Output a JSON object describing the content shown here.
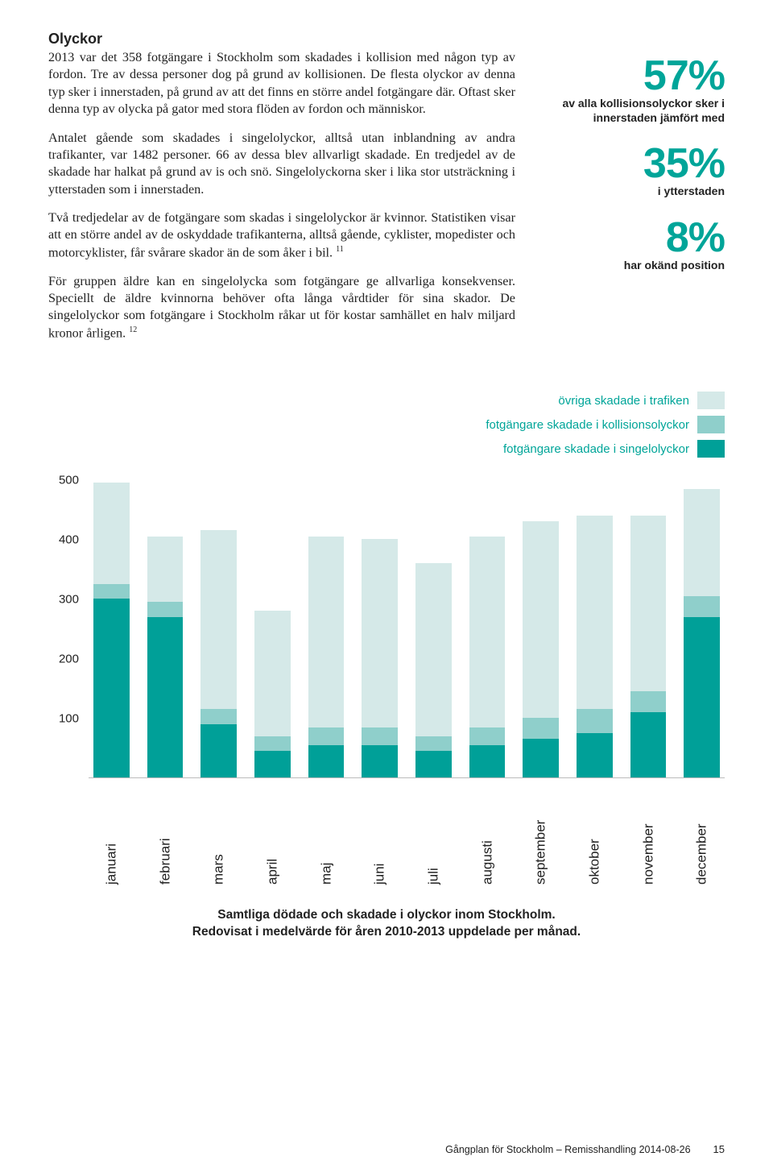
{
  "colors": {
    "teal": "#00a098",
    "teal_text": "#00a599",
    "mid": "#8fcfcb",
    "light": "#d5e9e8",
    "body_text": "#222222"
  },
  "heading": "Olyckor",
  "paragraphs": {
    "p1": "2013 var det 358 fotgängare i Stockholm som skadades i kollision med någon typ av fordon. Tre av dessa personer dog på grund av kollisionen. De flesta olyckor av denna typ sker i innerstaden, på grund av att det finns en större andel fotgängare där. Oftast sker denna typ av olycka på gator med stora flöden av fordon och människor.",
    "p2": "Antalet gående som skadades i singelolyckor, alltså utan inblandning av andra trafikanter, var 1482 personer. 66 av dessa blev allvarligt skadade. En tredjedel av de skadade har halkat på grund av is och snö. Singelolyckorna sker i lika stor utsträckning i ytterstaden som i innerstaden.",
    "p3": "Två tredjedelar av de fotgängare som skadas i singelolyckor är kvinnor. Statistiken visar att en större andel av de oskyddade trafikanterna, alltså gående, cyklister, mopedister och motorcyklister, får svårare skador än de som åker i bil.",
    "p3_sup": "11",
    "p4": "För gruppen äldre kan en singelolycka som fotgängare ge allvarliga konsekvenser. Speciellt de äldre kvinnorna behöver ofta långa vårdtider för sina skador. De singelolyckor som fotgängare i Stockholm råkar ut för kostar samhället en halv miljard kronor årligen.",
    "p4_sup": "12"
  },
  "stats": [
    {
      "value": "57%",
      "label": "av alla kollisionsolyckor sker i innerstaden jämfört med"
    },
    {
      "value": "35%",
      "label": "i ytterstaden"
    },
    {
      "value": "8%",
      "label": "har okänd position"
    }
  ],
  "legend": [
    {
      "label": "övriga skadade i trafiken",
      "color": "#d5e9e8",
      "text_color": "#00a599"
    },
    {
      "label": "fotgängare skadade i kollisionsolyckor",
      "color": "#8fcfcb",
      "text_color": "#00a599"
    },
    {
      "label": "fotgängare skadade i singelolyckor",
      "color": "#00a098",
      "text_color": "#00a599"
    }
  ],
  "chart": {
    "y_max": 500,
    "y_ticks": [
      "500",
      "400",
      "300",
      "200",
      "100"
    ],
    "months": [
      "januari",
      "februari",
      "mars",
      "april",
      "maj",
      "juni",
      "juli",
      "augusti",
      "september",
      "oktober",
      "november",
      "december"
    ],
    "series": {
      "single": [
        300,
        270,
        90,
        45,
        55,
        55,
        45,
        55,
        65,
        75,
        110,
        270
      ],
      "collision": [
        25,
        25,
        25,
        25,
        30,
        30,
        25,
        30,
        35,
        40,
        35,
        35
      ],
      "other": [
        170,
        110,
        300,
        210,
        320,
        315,
        290,
        320,
        330,
        325,
        295,
        180
      ]
    },
    "caption_l1": "Samtliga dödade och skadade i olyckor inom Stockholm.",
    "caption_l2": "Redovisat i medelvärde för åren 2010-2013 uppdelade per månad."
  },
  "footer": {
    "doc": "Gångplan för Stockholm – Remisshandling 2014-08-26",
    "page": "15"
  }
}
